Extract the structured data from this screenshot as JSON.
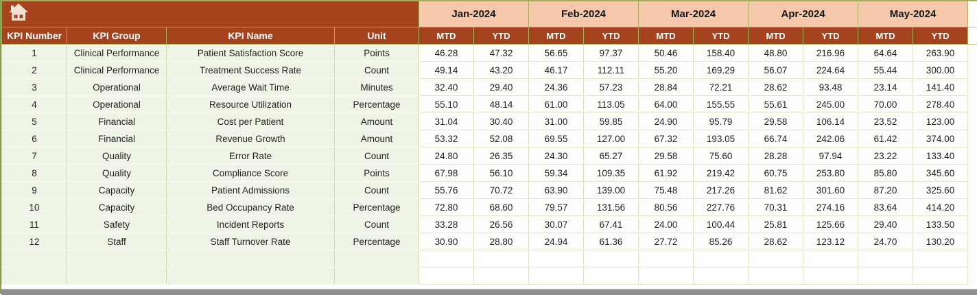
{
  "banner": {
    "home_icon": "home-icon"
  },
  "months": [
    {
      "label": "Jan-2024"
    },
    {
      "label": "Feb-2024"
    },
    {
      "label": "Mar-2024"
    },
    {
      "label": "Apr-2024"
    },
    {
      "label": "May-2024"
    }
  ],
  "columns": {
    "number": "KPI Number",
    "group": "KPI Group",
    "name": "KPI Name",
    "unit": "Unit"
  },
  "subheaders": {
    "mtd": "MTD",
    "ytd": "YTD"
  },
  "rows": [
    {
      "number": "1",
      "group": "Clinical Performance",
      "name": "Patient Satisfaction Score",
      "unit": "Points",
      "values": [
        "46.28",
        "47.32",
        "56.65",
        "97.37",
        "50.46",
        "158.40",
        "48.80",
        "216.96",
        "64.64",
        "263.90"
      ]
    },
    {
      "number": "2",
      "group": "Clinical Performance",
      "name": "Treatment Success Rate",
      "unit": "Count",
      "values": [
        "49.14",
        "43.20",
        "46.17",
        "112.11",
        "55.20",
        "169.29",
        "56.07",
        "224.64",
        "55.44",
        "300.00"
      ]
    },
    {
      "number": "3",
      "group": "Operational",
      "name": "Average Wait Time",
      "unit": "Minutes",
      "values": [
        "32.40",
        "29.40",
        "24.36",
        "57.23",
        "28.84",
        "72.21",
        "28.62",
        "93.48",
        "23.14",
        "141.40"
      ]
    },
    {
      "number": "4",
      "group": "Operational",
      "name": "Resource Utilization",
      "unit": "Percentage",
      "values": [
        "55.10",
        "48.14",
        "61.00",
        "113.05",
        "64.00",
        "155.55",
        "55.61",
        "245.00",
        "70.00",
        "278.40"
      ]
    },
    {
      "number": "5",
      "group": "Financial",
      "name": "Cost per Patient",
      "unit": "Amount",
      "values": [
        "31.04",
        "30.40",
        "31.00",
        "59.85",
        "24.90",
        "95.79",
        "29.58",
        "106.14",
        "23.52",
        "123.00"
      ]
    },
    {
      "number": "6",
      "group": "Financial",
      "name": "Revenue Growth",
      "unit": "Amount",
      "values": [
        "53.32",
        "52.08",
        "69.55",
        "127.00",
        "67.32",
        "193.05",
        "66.74",
        "242.06",
        "61.42",
        "374.00"
      ]
    },
    {
      "number": "7",
      "group": "Quality",
      "name": "Error Rate",
      "unit": "Count",
      "values": [
        "24.80",
        "26.35",
        "24.30",
        "65.27",
        "29.58",
        "75.60",
        "28.28",
        "97.94",
        "23.22",
        "133.40"
      ]
    },
    {
      "number": "8",
      "group": "Quality",
      "name": "Compliance Score",
      "unit": "Points",
      "values": [
        "67.98",
        "56.10",
        "59.34",
        "109.35",
        "61.92",
        "219.42",
        "60.75",
        "253.80",
        "85.80",
        "345.60"
      ]
    },
    {
      "number": "9",
      "group": "Capacity",
      "name": "Patient Admissions",
      "unit": "Count",
      "values": [
        "55.76",
        "70.72",
        "63.90",
        "139.00",
        "75.48",
        "217.26",
        "81.62",
        "301.60",
        "87.20",
        "325.60"
      ]
    },
    {
      "number": "10",
      "group": "Capacity",
      "name": "Bed Occupancy Rate",
      "unit": "Percentage",
      "values": [
        "72.80",
        "68.60",
        "79.57",
        "131.56",
        "80.56",
        "227.76",
        "70.31",
        "274.16",
        "83.64",
        "414.20"
      ]
    },
    {
      "number": "11",
      "group": "Safety",
      "name": "Incident Reports",
      "unit": "Count",
      "values": [
        "33.28",
        "26.56",
        "30.07",
        "67.41",
        "24.00",
        "100.44",
        "25.81",
        "125.66",
        "29.40",
        "133.50"
      ]
    },
    {
      "number": "12",
      "group": "Staff",
      "name": "Staff Turnover Rate",
      "unit": "Percentage",
      "values": [
        "30.90",
        "28.80",
        "24.94",
        "61.36",
        "27.72",
        "85.26",
        "28.62",
        "123.12",
        "24.70",
        "130.20"
      ]
    }
  ],
  "empty_row_count": 2,
  "colors": {
    "header_brown": "#A6431F",
    "month_peach": "#F5C8AB",
    "info_cell_green": "#EEF5E6",
    "grid_border_olive": "#A9AE5B",
    "grid_border_light": "#DFE9C9",
    "window_bar_gray": "#8F8F8F",
    "header_text": "#FFFFFF",
    "cell_text": "#1F1F1F"
  }
}
